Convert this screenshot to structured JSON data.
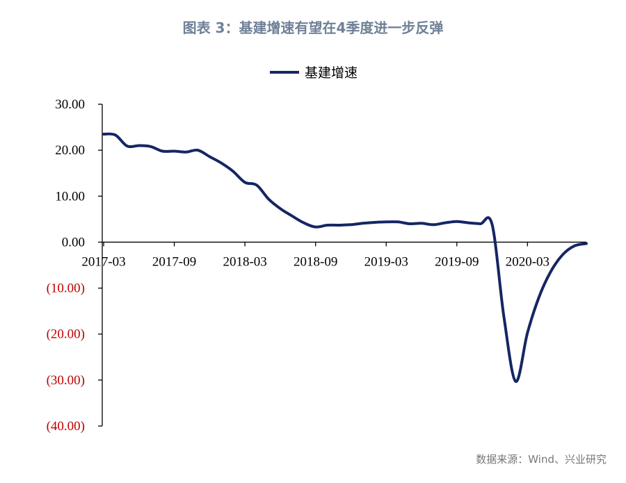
{
  "title": "图表 3：基建增速有望在4季度进一步反弹",
  "source": "数据来源：Wind、兴业研究",
  "colors": {
    "series": "#142664",
    "negative_tick": "#c00000",
    "positive_tick": "#000000",
    "title": "#6f8097",
    "source": "#777777"
  },
  "chart_data": {
    "type": "line",
    "title": "图表 3：基建增速有望在4季度进一步反弹",
    "legend": {
      "position": "top-center",
      "entries": [
        "基建增速"
      ]
    },
    "grid": false,
    "ylim": [
      -40,
      30
    ],
    "y_ticks": [
      30,
      20,
      10,
      0,
      -10,
      -20,
      -30,
      -40
    ],
    "y_tick_labels": [
      "30.00",
      "20.00",
      "10.00",
      "0.00",
      "(10.00)",
      "(20.00)",
      "(30.00)",
      "(40.00)"
    ],
    "x_tick_labels": [
      "2017-03",
      "2017-09",
      "2018-03",
      "2018-09",
      "2019-03",
      "2019-09",
      "2020-03"
    ],
    "xlim": [
      "2017-03",
      "2020-08"
    ],
    "series": [
      {
        "name": "基建增速",
        "x": [
          "2017-03",
          "2017-04",
          "2017-05",
          "2017-06",
          "2017-07",
          "2017-08",
          "2017-09",
          "2017-10",
          "2017-11",
          "2017-12",
          "2018-01",
          "2018-02",
          "2018-03",
          "2018-04",
          "2018-05",
          "2018-06",
          "2018-07",
          "2018-08",
          "2018-09",
          "2018-10",
          "2018-11",
          "2018-12",
          "2019-01",
          "2019-02",
          "2019-03",
          "2019-04",
          "2019-05",
          "2019-06",
          "2019-07",
          "2019-08",
          "2019-09",
          "2019-10",
          "2019-11",
          "2019-12",
          "2020-01",
          "2020-02",
          "2020-03",
          "2020-04",
          "2020-05",
          "2020-06",
          "2020-07",
          "2020-08"
        ],
        "y": [
          23.5,
          23.3,
          20.9,
          21.0,
          20.8,
          19.8,
          19.8,
          19.6,
          20.0,
          18.6,
          17.2,
          15.4,
          13.0,
          12.4,
          9.4,
          7.3,
          5.7,
          4.2,
          3.3,
          3.7,
          3.7,
          3.8,
          4.1,
          4.3,
          4.4,
          4.4,
          4.0,
          4.1,
          3.8,
          4.2,
          4.5,
          4.2,
          4.0,
          3.8,
          -16.3,
          -30.3,
          -19.7,
          -11.8,
          -6.3,
          -2.7,
          -0.8,
          -0.3
        ]
      }
    ]
  }
}
